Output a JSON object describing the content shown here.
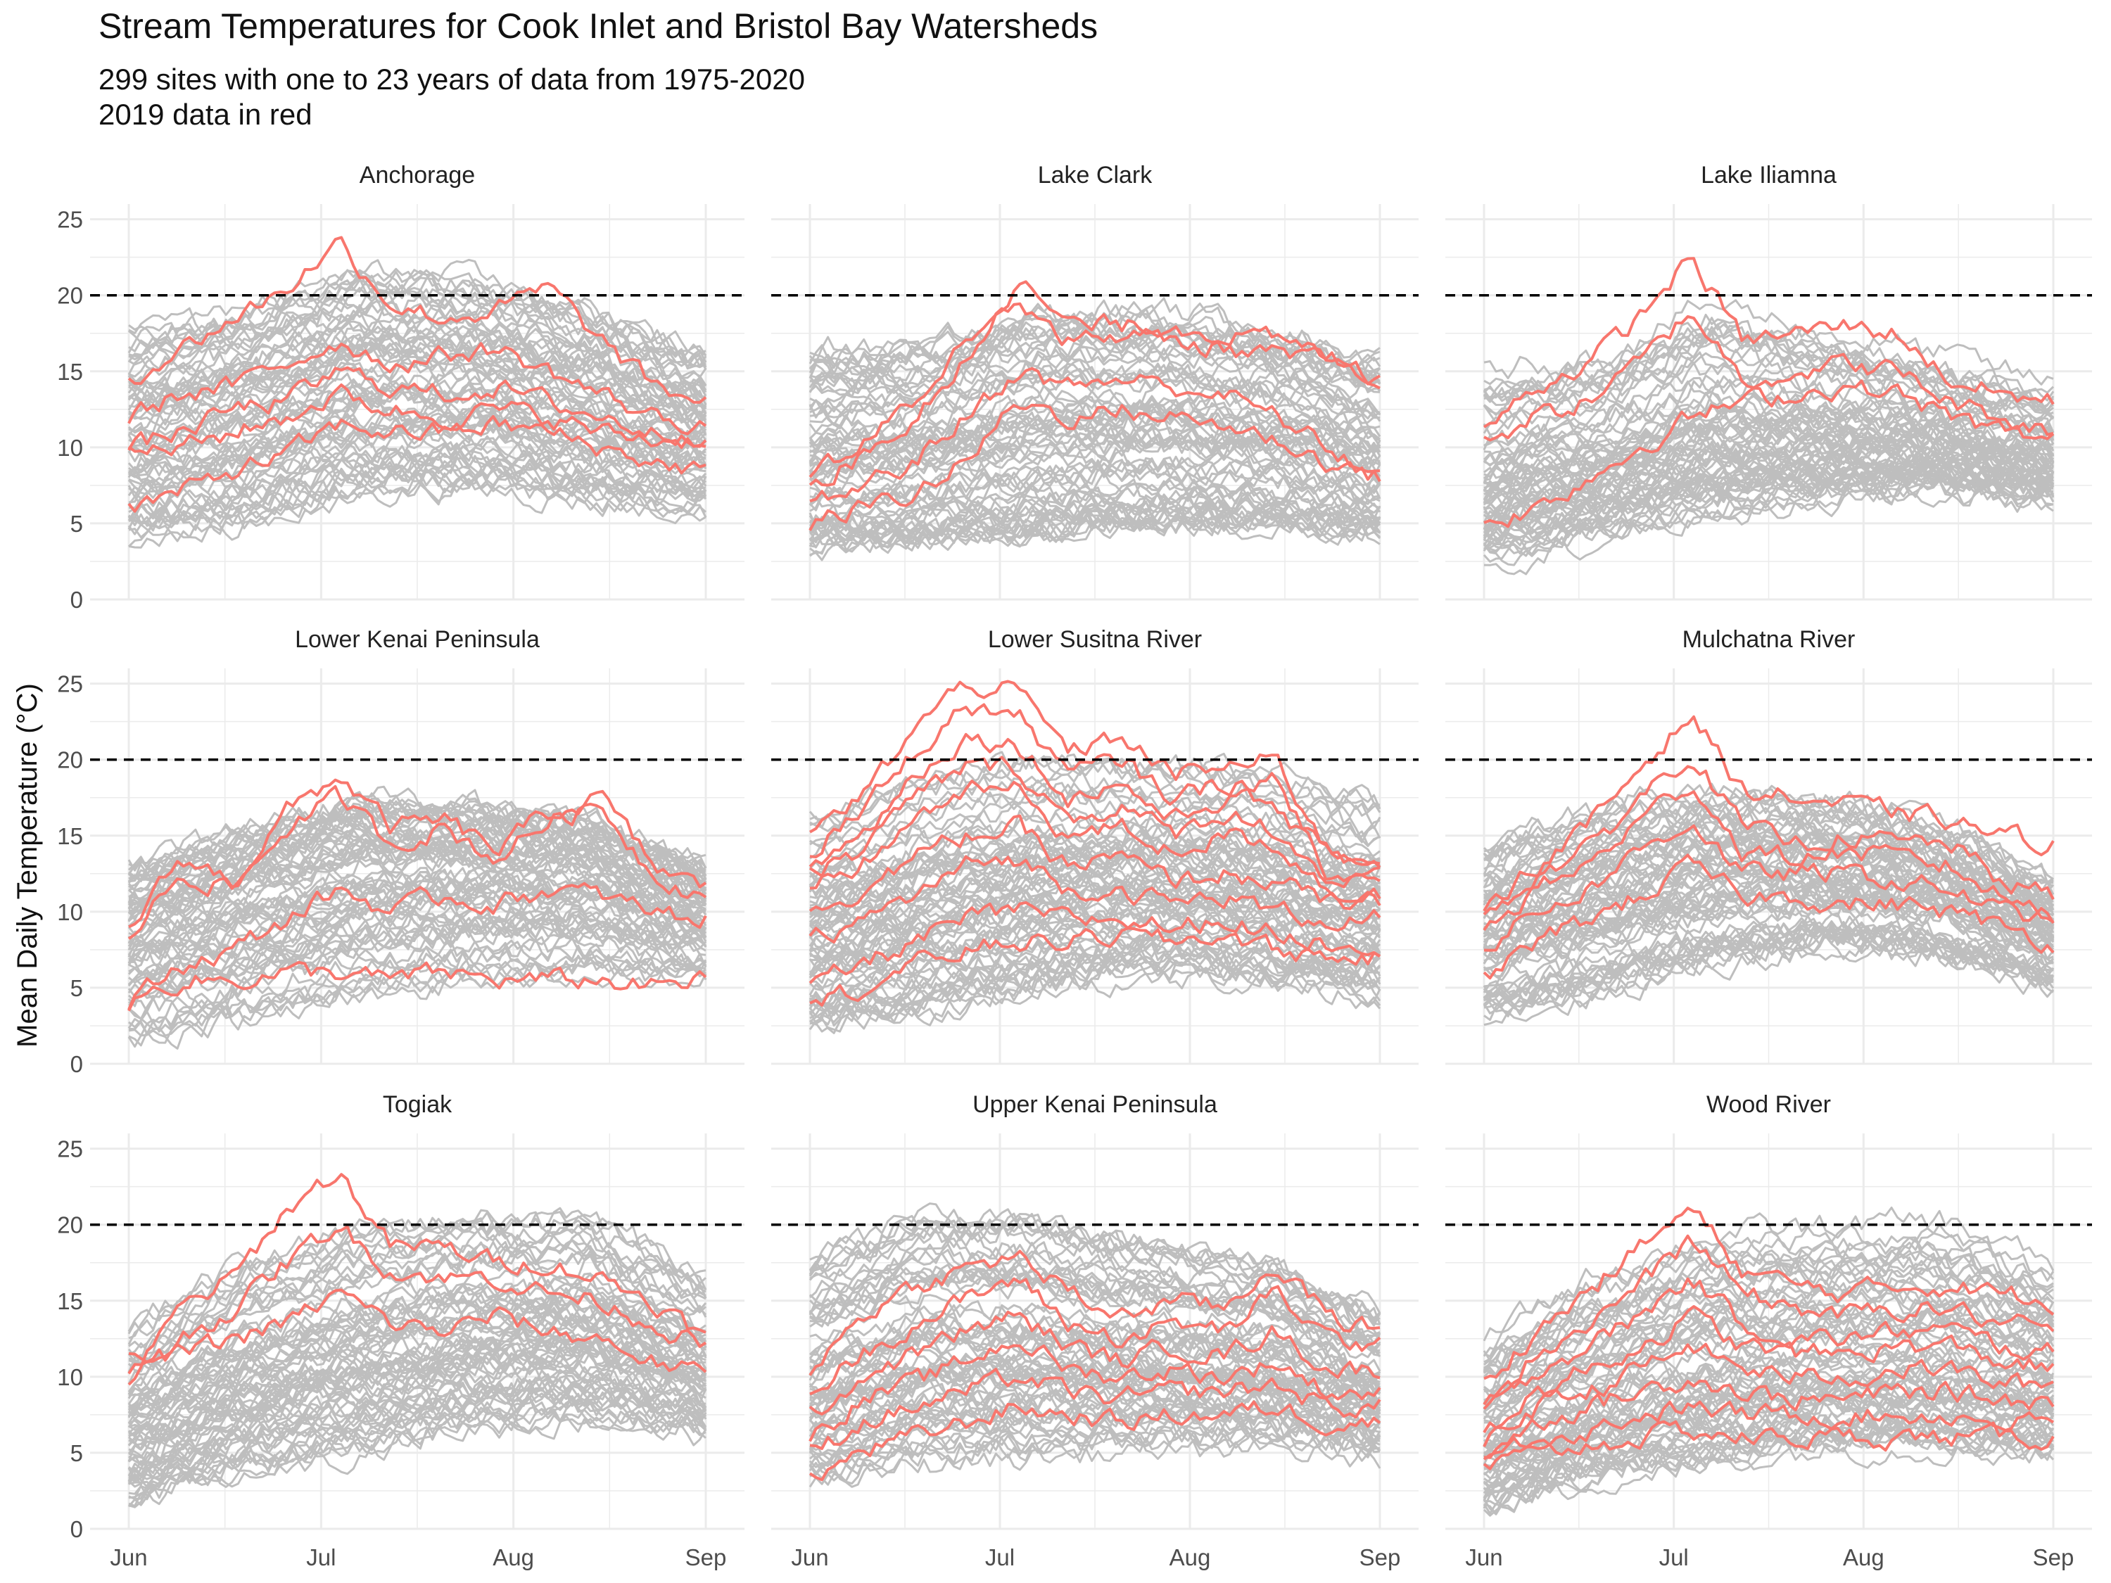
{
  "title": "Stream Temperatures for Cook Inlet and Bristol Bay Watersheds",
  "subtitle_line1": "299 sites with one to 23 years of data from 1975-2020",
  "subtitle_line2": "2019 data in red",
  "colors": {
    "background_series": "#bebebe",
    "highlight_series": "#f8766d",
    "threshold": "#000000",
    "grid": "#ebebeb"
  },
  "chart_data": {
    "type": "line",
    "facet_layout": "3x3",
    "ylabel": "Mean Daily Temperature (°C)",
    "xlabel": "",
    "x_ticks": [
      "Jun",
      "Jul",
      "Aug",
      "Sep"
    ],
    "y_ticks": [
      0,
      5,
      10,
      15,
      20,
      25
    ],
    "ylim": [
      0,
      26
    ],
    "threshold": {
      "y": 20,
      "style": "dashed"
    },
    "grid": true,
    "series_legend": "2019 data in red",
    "panels": [
      {
        "name": "Anchorage",
        "gray_range": {
          "min": [
            4.5,
            5.5,
            7.5,
            8.0,
            7.0,
            6.5
          ],
          "max": [
            17.5,
            19.0,
            21.5,
            21.0,
            19.0,
            16.0
          ]
        },
        "red_series": [
          [
            14.5,
            16.5,
            18.5,
            20.5,
            23.5,
            19.5,
            18.5,
            19.0,
            20.5,
            17.0,
            14.0,
            13.0
          ],
          [
            12.0,
            13.5,
            14.0,
            15.5,
            17.0,
            15.5,
            16.0,
            16.5,
            15.0,
            13.5,
            12.0,
            11.5
          ],
          [
            10.0,
            11.0,
            12.5,
            13.0,
            15.0,
            14.0,
            13.5,
            14.0,
            13.0,
            12.0,
            11.0,
            11.0
          ],
          [
            9.5,
            10.0,
            11.0,
            12.0,
            13.5,
            12.5,
            12.0,
            12.5,
            12.0,
            11.0,
            10.5,
            10.5
          ],
          [
            6.0,
            7.0,
            8.5,
            9.5,
            11.5,
            11.0,
            11.0,
            11.5,
            11.0,
            10.0,
            9.0,
            8.5
          ]
        ]
      },
      {
        "name": "Lake Clark",
        "gray_range": {
          "min": [
            3.5,
            4.0,
            4.5,
            5.0,
            5.0,
            4.5
          ],
          "max": [
            16.0,
            16.5,
            18.5,
            18.5,
            17.5,
            15.5
          ]
        },
        "red_series": [
          [
            8.5,
            10.0,
            13.0,
            17.0,
            21.0,
            18.0,
            18.0,
            18.0,
            17.5,
            17.0,
            16.0,
            14.5
          ],
          [
            7.5,
            9.5,
            12.0,
            16.0,
            20.0,
            17.0,
            17.5,
            17.0,
            16.5,
            16.0,
            15.5,
            14.5
          ],
          [
            6.0,
            7.5,
            9.0,
            12.0,
            15.0,
            14.0,
            14.5,
            14.0,
            13.5,
            12.0,
            10.0,
            8.0
          ],
          [
            5.0,
            6.0,
            7.0,
            9.0,
            13.0,
            12.0,
            12.5,
            12.0,
            11.5,
            10.5,
            9.0,
            8.0
          ]
        ]
      },
      {
        "name": "Lake Iliamna",
        "gray_range": {
          "min": [
            2.5,
            4.0,
            5.5,
            6.5,
            7.0,
            6.5
          ],
          "max": [
            15.0,
            16.0,
            19.5,
            17.5,
            16.0,
            14.0
          ]
        },
        "red_series": [
          [
            11.0,
            14.0,
            15.5,
            18.5,
            22.5,
            17.0,
            17.5,
            18.0,
            17.5,
            14.5,
            13.5,
            13.0
          ],
          [
            10.5,
            12.0,
            13.0,
            15.5,
            19.0,
            14.5,
            15.0,
            15.5,
            15.0,
            13.0,
            12.0,
            11.0
          ],
          [
            5.0,
            6.0,
            8.0,
            10.0,
            12.0,
            13.0,
            13.5,
            14.0,
            13.5,
            12.0,
            11.0,
            10.5
          ]
        ]
      },
      {
        "name": "Lower Kenai Peninsula",
        "gray_range": {
          "min": [
            2.0,
            3.5,
            5.0,
            6.0,
            6.5,
            6.0
          ],
          "max": [
            14.0,
            16.5,
            18.5,
            18.0,
            17.0,
            13.5
          ]
        },
        "red_series": [
          [
            9.0,
            13.5,
            12.0,
            16.5,
            19.0,
            15.5,
            16.0,
            14.0,
            16.5,
            17.5,
            13.0,
            11.5
          ],
          [
            8.5,
            12.5,
            11.5,
            15.5,
            17.5,
            14.5,
            15.5,
            13.5,
            16.0,
            17.0,
            12.5,
            11.0
          ],
          [
            4.0,
            6.5,
            7.5,
            9.5,
            11.5,
            10.0,
            11.0,
            10.5,
            11.5,
            11.0,
            10.0,
            9.5
          ],
          [
            4.0,
            5.5,
            5.5,
            6.0,
            6.0,
            5.5,
            6.0,
            5.5,
            5.5,
            5.5,
            5.0,
            5.5
          ]
        ]
      },
      {
        "name": "Lower Susitna River",
        "gray_range": {
          "min": [
            3.0,
            4.0,
            5.5,
            6.5,
            6.0,
            5.0
          ],
          "max": [
            16.0,
            18.5,
            20.0,
            19.5,
            19.0,
            17.0
          ]
        },
        "red_series": [
          [
            15.0,
            17.5,
            22.0,
            25.0,
            24.5,
            20.5,
            21.5,
            19.0,
            19.5,
            20.0,
            14.0,
            13.5
          ],
          [
            14.0,
            16.5,
            20.5,
            23.5,
            23.0,
            19.0,
            20.0,
            17.5,
            18.5,
            18.5,
            13.5,
            13.0
          ],
          [
            13.0,
            15.0,
            19.0,
            21.5,
            21.0,
            17.5,
            18.5,
            16.0,
            17.5,
            17.0,
            12.5,
            12.5
          ],
          [
            12.5,
            14.0,
            17.5,
            19.5,
            19.5,
            16.0,
            17.0,
            15.0,
            16.5,
            15.5,
            12.0,
            12.0
          ],
          [
            11.5,
            13.0,
            16.0,
            18.0,
            18.0,
            15.0,
            15.5,
            14.0,
            15.0,
            14.5,
            11.5,
            11.0
          ],
          [
            10.0,
            11.5,
            13.5,
            15.0,
            15.5,
            13.0,
            13.5,
            12.0,
            12.5,
            12.0,
            10.5,
            10.5
          ],
          [
            8.0,
            9.5,
            11.0,
            13.0,
            13.5,
            11.5,
            11.5,
            10.5,
            11.0,
            10.0,
            9.5,
            9.5
          ],
          [
            5.0,
            6.5,
            8.0,
            9.5,
            10.0,
            9.5,
            9.5,
            9.0,
            9.5,
            8.5,
            8.0,
            8.0
          ],
          [
            4.0,
            5.0,
            6.5,
            7.5,
            8.0,
            8.0,
            8.5,
            8.0,
            8.5,
            7.5,
            7.0,
            7.0
          ]
        ]
      },
      {
        "name": "Mulchatna River",
        "gray_range": {
          "min": [
            3.5,
            5.0,
            7.0,
            8.0,
            7.5,
            5.5
          ],
          "max": [
            14.5,
            17.0,
            18.0,
            17.5,
            16.0,
            12.0
          ]
        },
        "red_series": [
          [
            10.5,
            13.0,
            15.5,
            19.5,
            23.0,
            18.0,
            17.5,
            17.0,
            16.5,
            16.0,
            15.0,
            14.5
          ],
          [
            9.5,
            12.5,
            14.0,
            17.5,
            20.5,
            15.5,
            14.5,
            15.0,
            14.5,
            14.5,
            12.0,
            11.0
          ],
          [
            8.5,
            11.5,
            13.0,
            16.0,
            18.5,
            14.0,
            13.5,
            14.0,
            13.5,
            13.0,
            11.0,
            10.0
          ],
          [
            7.5,
            10.0,
            11.5,
            14.0,
            16.0,
            12.5,
            12.5,
            12.5,
            12.0,
            11.5,
            10.0,
            9.5
          ],
          [
            5.5,
            8.0,
            9.5,
            11.0,
            13.0,
            11.0,
            11.0,
            10.5,
            10.5,
            10.0,
            9.0,
            8.0
          ]
        ]
      },
      {
        "name": "Togiak",
        "gray_range": {
          "min": [
            2.0,
            4.0,
            5.5,
            7.0,
            7.5,
            6.5
          ],
          "max": [
            13.0,
            17.5,
            19.5,
            20.5,
            20.5,
            16.5
          ]
        },
        "red_series": [
          [
            9.5,
            14.5,
            16.5,
            21.0,
            23.5,
            18.5,
            18.5,
            17.5,
            17.5,
            16.5,
            15.0,
            12.5
          ],
          [
            10.0,
            12.5,
            14.5,
            17.5,
            20.0,
            17.0,
            16.5,
            16.5,
            15.5,
            15.0,
            13.5,
            12.0
          ],
          [
            11.0,
            11.5,
            12.5,
            13.5,
            15.5,
            13.5,
            13.0,
            14.0,
            13.0,
            12.5,
            11.0,
            10.0
          ]
        ]
      },
      {
        "name": "Upper Kenai Peninsula",
        "gray_range": {
          "min": [
            3.0,
            4.5,
            5.0,
            5.5,
            5.5,
            5.0
          ],
          "max": [
            17.5,
            20.5,
            20.0,
            18.5,
            17.5,
            14.0
          ]
        },
        "red_series": [
          [
            10.5,
            14.0,
            16.0,
            17.0,
            18.0,
            15.5,
            14.0,
            15.0,
            14.5,
            17.5,
            14.0,
            13.0
          ],
          [
            9.0,
            11.5,
            13.5,
            15.0,
            16.5,
            13.5,
            12.5,
            13.5,
            13.0,
            15.5,
            12.5,
            12.0
          ],
          [
            7.5,
            10.0,
            11.5,
            13.0,
            14.0,
            12.0,
            11.0,
            12.0,
            11.5,
            13.0,
            10.5,
            10.5
          ],
          [
            6.0,
            8.5,
            9.5,
            11.0,
            12.5,
            10.5,
            10.0,
            10.5,
            10.0,
            11.0,
            9.0,
            9.0
          ],
          [
            5.0,
            7.0,
            8.0,
            9.0,
            10.0,
            9.0,
            8.5,
            9.0,
            9.0,
            9.5,
            8.0,
            8.0
          ],
          [
            3.5,
            5.0,
            6.0,
            7.0,
            8.0,
            7.5,
            7.0,
            7.5,
            7.5,
            8.0,
            7.0,
            7.0
          ]
        ]
      },
      {
        "name": "Wood River",
        "gray_range": {
          "min": [
            1.5,
            3.5,
            4.5,
            5.5,
            5.5,
            5.0
          ],
          "max": [
            12.5,
            17.0,
            19.5,
            20.0,
            20.5,
            17.5
          ]
        },
        "red_series": [
          [
            9.5,
            13.0,
            15.5,
            18.5,
            21.0,
            17.0,
            16.0,
            15.5,
            16.0,
            16.0,
            15.5,
            15.0
          ],
          [
            8.5,
            11.5,
            13.5,
            16.0,
            19.0,
            15.5,
            14.5,
            14.0,
            14.5,
            14.5,
            13.5,
            13.0
          ],
          [
            7.5,
            10.5,
            12.0,
            14.0,
            16.5,
            13.5,
            12.5,
            12.5,
            13.0,
            13.0,
            12.0,
            11.5
          ],
          [
            6.5,
            9.0,
            10.5,
            12.0,
            14.0,
            12.0,
            11.5,
            11.5,
            12.0,
            12.0,
            11.0,
            10.5
          ],
          [
            5.5,
            8.0,
            9.0,
            10.5,
            12.0,
            10.5,
            10.0,
            10.0,
            10.5,
            10.5,
            9.5,
            9.5
          ],
          [
            5.0,
            7.0,
            8.0,
            9.0,
            10.0,
            9.0,
            8.5,
            8.5,
            9.0,
            9.0,
            8.5,
            8.5
          ],
          [
            4.5,
            6.0,
            6.5,
            7.5,
            8.0,
            7.5,
            7.5,
            7.5,
            7.5,
            7.5,
            7.0,
            7.0
          ],
          [
            4.0,
            5.0,
            5.5,
            6.0,
            6.5,
            6.0,
            6.0,
            6.0,
            6.0,
            6.0,
            6.0,
            6.0
          ]
        ]
      }
    ]
  }
}
